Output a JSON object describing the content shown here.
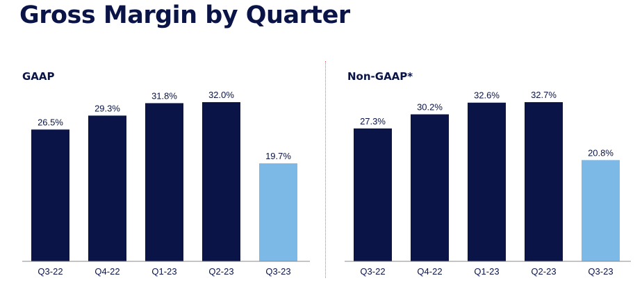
{
  "page": {
    "title": "Gross Margin by Quarter"
  },
  "colors": {
    "title": "#0a1447",
    "bar_dark": "#0a1447",
    "bar_highlight": "#7cb9e6",
    "axis": "#8a8a8a",
    "divider": "#e06a6a"
  },
  "chart_data": [
    {
      "type": "bar",
      "title": "GAAP",
      "categories": [
        "Q3-22",
        "Q4-22",
        "Q1-23",
        "Q2-23",
        "Q3-23"
      ],
      "values": [
        26.5,
        29.3,
        31.8,
        32.0,
        19.7
      ],
      "value_labels": [
        "26.5%",
        "29.3%",
        "31.8%",
        "32.0%",
        "19.7%"
      ],
      "highlight_index": 4,
      "unit": "%",
      "ylim": [
        0,
        32.0
      ],
      "grid": false,
      "xlabel": "",
      "ylabel": ""
    },
    {
      "type": "bar",
      "title": "Non-GAAP*",
      "categories": [
        "Q3-22",
        "Q4-22",
        "Q1-23",
        "Q2-23",
        "Q3-23"
      ],
      "values": [
        27.3,
        30.2,
        32.6,
        32.7,
        20.8
      ],
      "value_labels": [
        "27.3%",
        "30.2%",
        "32.6%",
        "32.7%",
        "20.8%"
      ],
      "highlight_index": 4,
      "unit": "%",
      "ylim": [
        0,
        32.7
      ],
      "grid": false,
      "xlabel": "",
      "ylabel": ""
    }
  ]
}
